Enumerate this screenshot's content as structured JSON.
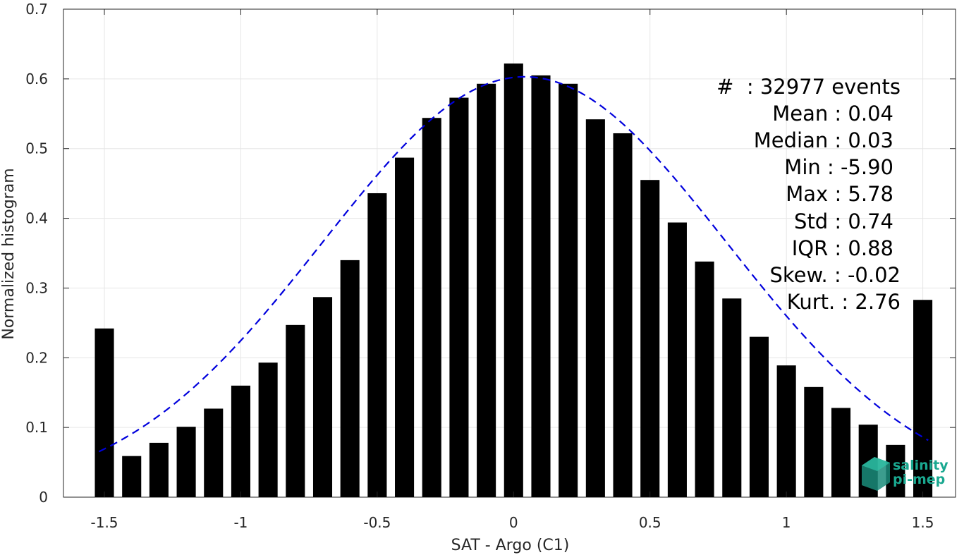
{
  "chart_data": {
    "type": "bar",
    "xlabel": "SAT - Argo (C1)",
    "ylabel": "Normalized histogram",
    "xlim": [
      -1.65,
      1.62
    ],
    "ylim": [
      0,
      0.7
    ],
    "xticks": [
      -1.5,
      -1,
      -0.5,
      0,
      0.5,
      1,
      1.5
    ],
    "xtick_labels": [
      "-1.5",
      "-1",
      "-0.5",
      "0",
      "0.5",
      "1",
      "1.5"
    ],
    "yticks": [
      0,
      0.1,
      0.2,
      0.3,
      0.4,
      0.5,
      0.6,
      0.7
    ],
    "ytick_labels": [
      "0",
      "0.1",
      "0.2",
      "0.3",
      "0.4",
      "0.5",
      "0.6",
      "0.7"
    ],
    "grid": true,
    "bar_width": 0.07,
    "bar_color": "#000000",
    "x": [
      -1.5,
      -1.4,
      -1.3,
      -1.2,
      -1.1,
      -1.0,
      -0.9,
      -0.8,
      -0.7,
      -0.6,
      -0.5,
      -0.4,
      -0.3,
      -0.2,
      -0.1,
      0.0,
      0.1,
      0.2,
      0.3,
      0.4,
      0.5,
      0.6,
      0.7,
      0.8,
      0.9,
      1.0,
      1.1,
      1.2,
      1.3,
      1.4,
      1.5
    ],
    "values": [
      0.242,
      0.059,
      0.078,
      0.101,
      0.127,
      0.16,
      0.193,
      0.247,
      0.287,
      0.34,
      0.436,
      0.487,
      0.544,
      0.573,
      0.593,
      0.622,
      0.605,
      0.593,
      0.542,
      0.522,
      0.455,
      0.394,
      0.338,
      0.285,
      0.23,
      0.189,
      0.158,
      0.128,
      0.104,
      0.075,
      0.283
    ],
    "fit": {
      "type": "gaussian",
      "style": "dashed",
      "color": "#0000dd",
      "x_range": [
        -1.52,
        1.52
      ],
      "mean": 0.04,
      "std": 0.74,
      "peak": 0.603
    },
    "annotations": [
      "#  : 32977 events",
      "Mean : 0.04",
      "Median : 0.03",
      "Min : -5.90",
      "Max : 5.78",
      "Std : 0.74",
      "IQR : 0.88",
      "Skew. : -0.02",
      "Kurt. : 2.76"
    ]
  },
  "logo": {
    "line1": "salinity",
    "line2": "pi-mep",
    "color": "#1aa890"
  }
}
